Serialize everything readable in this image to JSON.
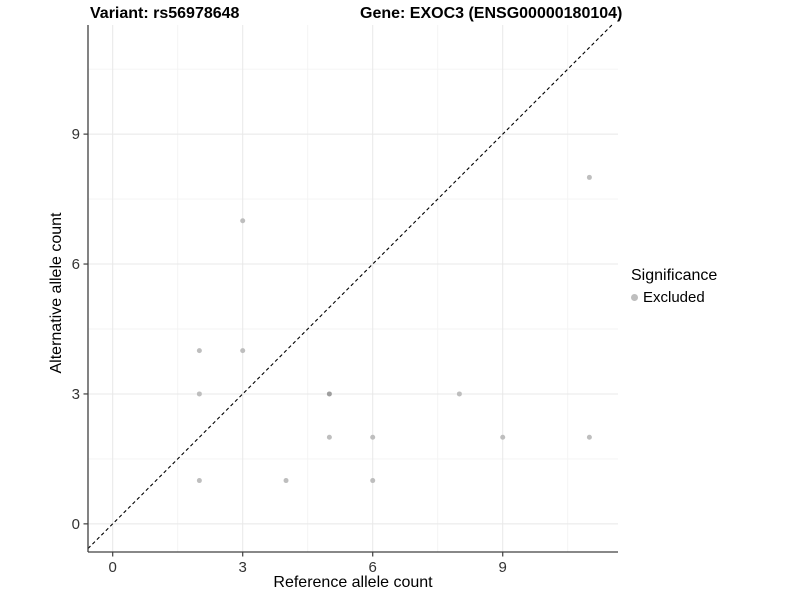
{
  "header": {
    "variant_title": "Variant: rs56978648",
    "gene_title": "Gene: EXOC3 (ENSG00000180104)"
  },
  "legend": {
    "title": "Significance",
    "items": [
      {
        "label": "Excluded",
        "color": "#bebebe"
      }
    ]
  },
  "chart_data": {
    "type": "scatter",
    "title": "Variant: rs56978648  Gene: EXOC3 (ENSG00000180104)",
    "xlabel": "Reference allele count",
    "ylabel": "Alternative allele count",
    "xlim": [
      -0.57,
      11.66
    ],
    "ylim": [
      -0.65,
      11.52
    ],
    "x_ticks": [
      0,
      3,
      6,
      9
    ],
    "y_ticks": [
      0,
      3,
      6,
      9
    ],
    "x_minor_gridlines": [
      1.5,
      4.5,
      7.5,
      10.5
    ],
    "y_minor_gridlines": [
      1.5,
      4.5,
      7.5,
      10.5
    ],
    "grid": true,
    "legend_position": "right",
    "reference_line": {
      "type": "identity",
      "slope": 1,
      "intercept": 0,
      "style": "dashed",
      "color": "#000000"
    },
    "series": [
      {
        "name": "Excluded",
        "points": [
          {
            "x": 2,
            "y": 1,
            "count": 1
          },
          {
            "x": 2,
            "y": 3,
            "count": 1
          },
          {
            "x": 2,
            "y": 4,
            "count": 1
          },
          {
            "x": 3,
            "y": 4,
            "count": 1
          },
          {
            "x": 3,
            "y": 7,
            "count": 1
          },
          {
            "x": 4,
            "y": 1,
            "count": 1
          },
          {
            "x": 5,
            "y": 2,
            "count": 1
          },
          {
            "x": 5,
            "y": 3,
            "count": 2
          },
          {
            "x": 6,
            "y": 1,
            "count": 1
          },
          {
            "x": 6,
            "y": 2,
            "count": 1
          },
          {
            "x": 8,
            "y": 3,
            "count": 1
          },
          {
            "x": 9,
            "y": 2,
            "count": 1
          },
          {
            "x": 11,
            "y": 2,
            "count": 1
          },
          {
            "x": 11,
            "y": 8,
            "count": 1
          }
        ]
      }
    ],
    "colors": {
      "point": "#bebebe",
      "point_overlap": "#9e9e9e",
      "grid_major": "#e8e8e8",
      "grid_minor": "#f3f3f3",
      "axis": "#404040",
      "tick_label": "#333333",
      "reference_line": "#000000"
    }
  }
}
